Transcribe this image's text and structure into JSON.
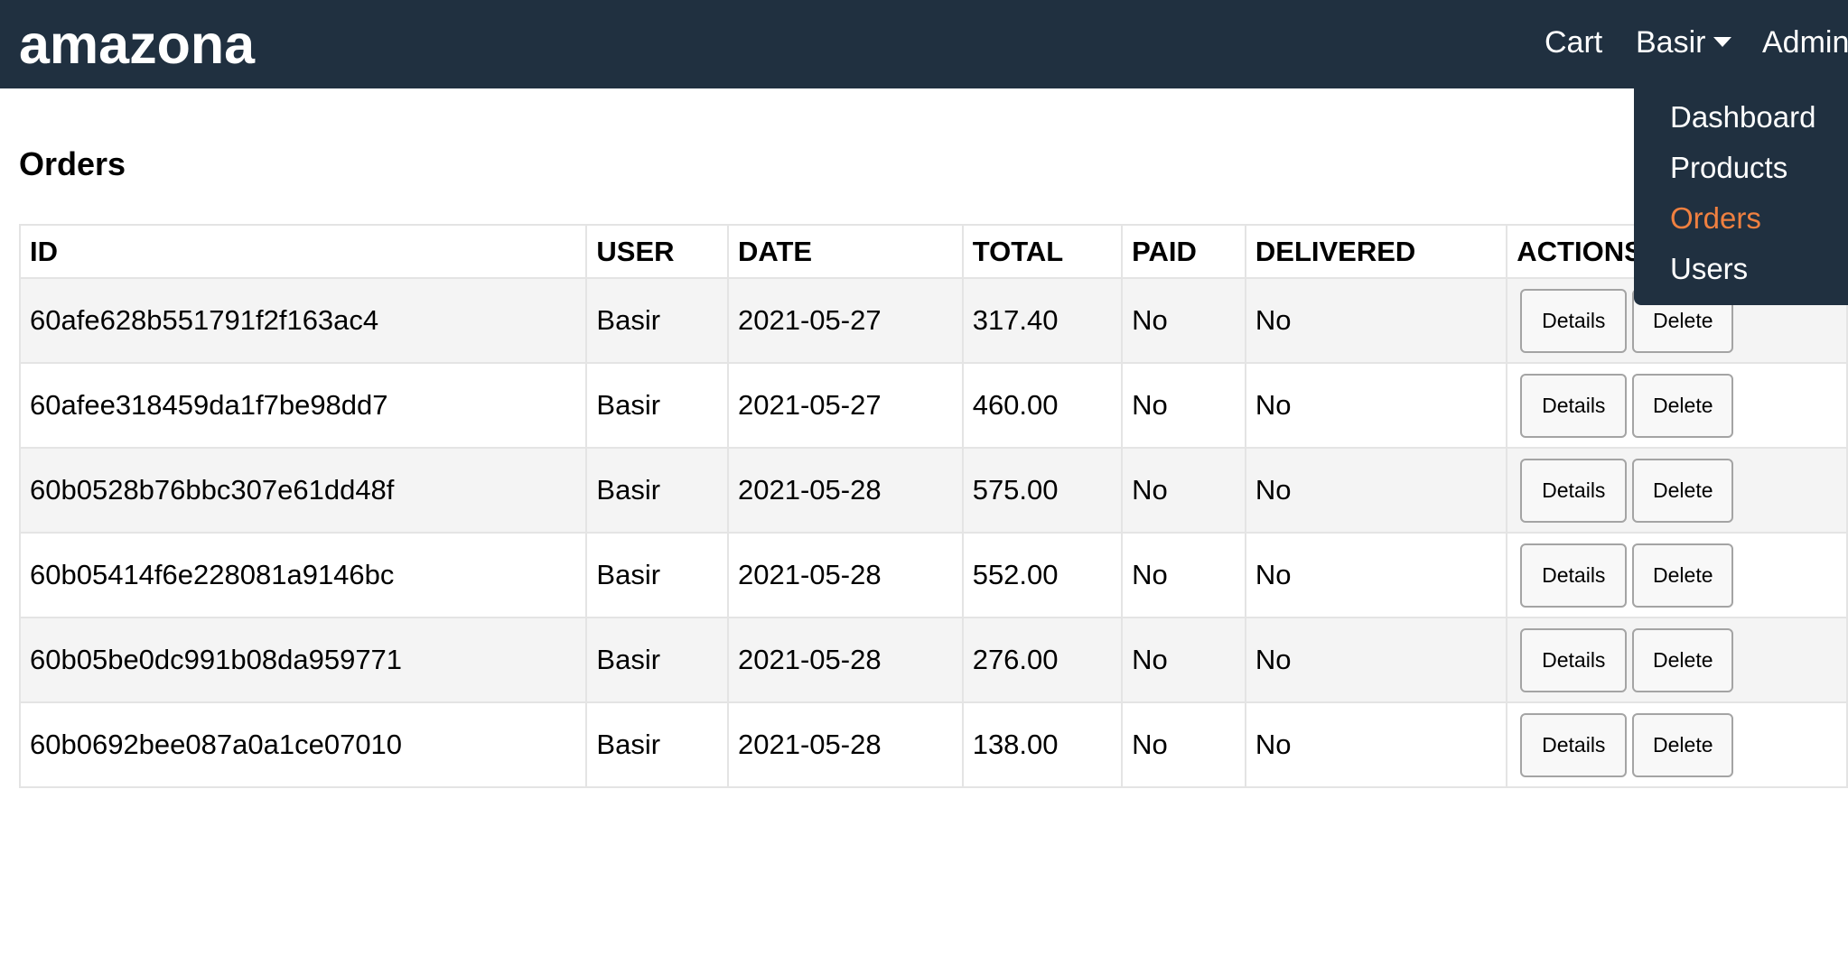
{
  "header": {
    "brand": "amazona",
    "cart_label": "Cart",
    "user_label": "Basir",
    "admin_label": "Admin"
  },
  "admin_menu": {
    "items": [
      {
        "label": "Dashboard",
        "active": false
      },
      {
        "label": "Products",
        "active": false
      },
      {
        "label": "Orders",
        "active": true
      },
      {
        "label": "Users",
        "active": false
      }
    ]
  },
  "page": {
    "title": "Orders"
  },
  "table": {
    "columns": [
      "ID",
      "USER",
      "DATE",
      "TOTAL",
      "PAID",
      "DELIVERED",
      "ACTIONS"
    ],
    "rows": [
      {
        "id": "60afe628b551791f2f163ac4",
        "user": "Basir",
        "date": "2021-05-27",
        "total": "317.40",
        "paid": "No",
        "delivered": "No"
      },
      {
        "id": "60afee318459da1f7be98dd7",
        "user": "Basir",
        "date": "2021-05-27",
        "total": "460.00",
        "paid": "No",
        "delivered": "No"
      },
      {
        "id": "60b0528b76bbc307e61dd48f",
        "user": "Basir",
        "date": "2021-05-28",
        "total": "575.00",
        "paid": "No",
        "delivered": "No"
      },
      {
        "id": "60b05414f6e228081a9146bc",
        "user": "Basir",
        "date": "2021-05-28",
        "total": "552.00",
        "paid": "No",
        "delivered": "No"
      },
      {
        "id": "60b05be0dc991b08da959771",
        "user": "Basir",
        "date": "2021-05-28",
        "total": "276.00",
        "paid": "No",
        "delivered": "No"
      },
      {
        "id": "60b0692bee087a0a1ce07010",
        "user": "Basir",
        "date": "2021-05-28",
        "total": "138.00",
        "paid": "No",
        "delivered": "No"
      }
    ],
    "details_label": "Details",
    "delete_label": "Delete"
  },
  "colors": {
    "header_bg": "#203040",
    "active_menu": "#f08040",
    "row_alt": "#f4f4f4"
  },
  "icons": {
    "user_menu_caret": "caret-down-icon"
  }
}
